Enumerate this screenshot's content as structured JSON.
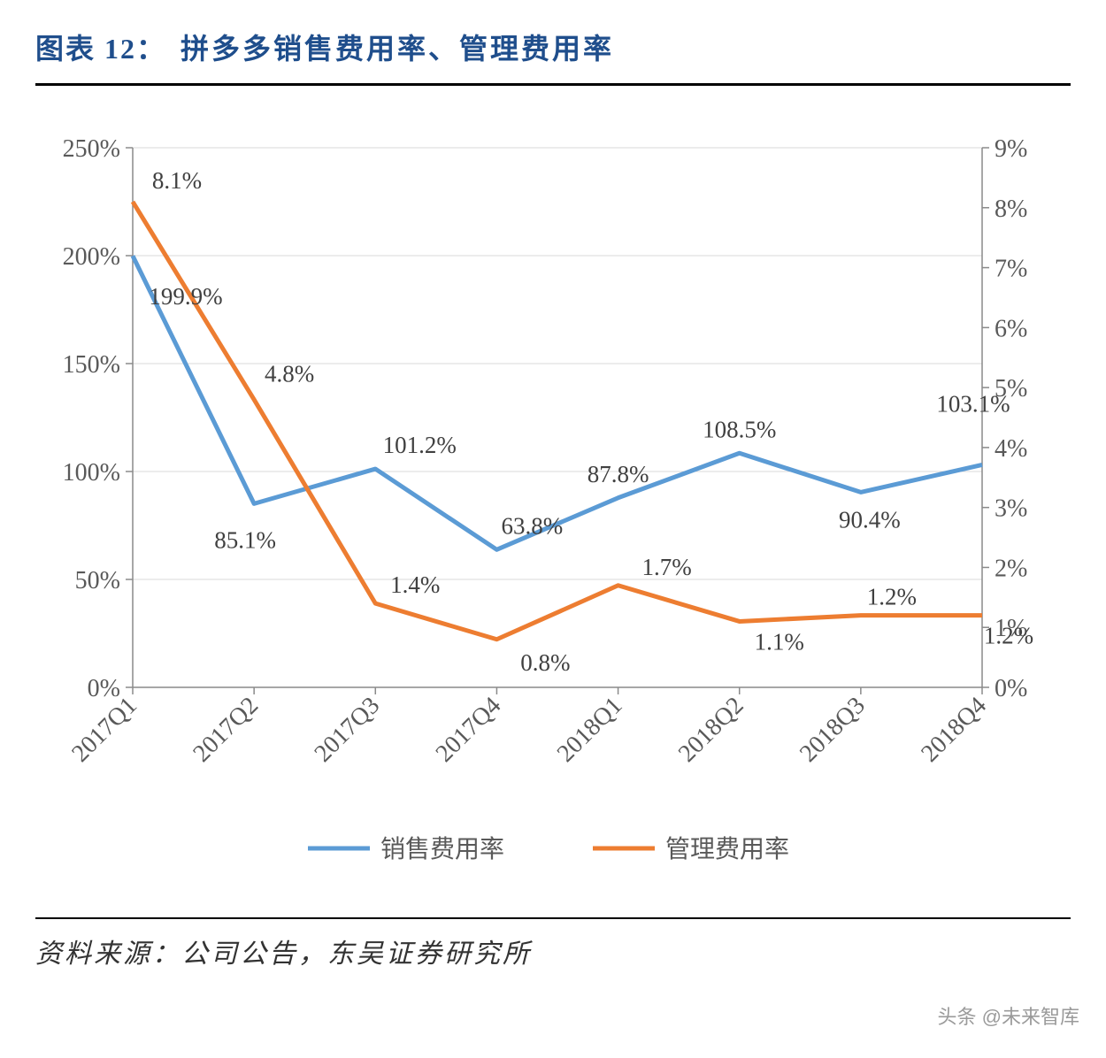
{
  "header": {
    "label": "图表 12：",
    "title": "拼多多销售费用率、管理费用率"
  },
  "chart": {
    "type": "line-dual-axis",
    "background_color": "#ffffff",
    "grid_color": "#d9d9d9",
    "axis_color": "#8a8a8a",
    "categories": [
      "2017Q1",
      "2017Q2",
      "2017Q3",
      "2017Q4",
      "2018Q1",
      "2018Q2",
      "2018Q3",
      "2018Q4"
    ],
    "left_axis": {
      "min": 0,
      "max": 250,
      "step": 50,
      "suffix": "%",
      "ticks": [
        "0%",
        "50%",
        "100%",
        "150%",
        "200%",
        "250%"
      ]
    },
    "right_axis": {
      "min": 0,
      "max": 9,
      "step": 1,
      "suffix": "%",
      "ticks": [
        "0%",
        "1%",
        "2%",
        "3%",
        "4%",
        "5%",
        "6%",
        "7%",
        "8%",
        "9%"
      ]
    },
    "series": [
      {
        "name": "销售费用率",
        "axis": "left",
        "color": "#5b9bd5",
        "line_width": 5,
        "values": [
          199.9,
          85.1,
          101.2,
          63.8,
          87.8,
          108.5,
          90.4,
          103.1
        ],
        "labels": [
          "199.9%",
          "85.1%",
          "101.2%",
          "63.8%",
          "87.8%",
          "108.5%",
          "90.4%",
          "103.1%"
        ]
      },
      {
        "name": "管理费用率",
        "axis": "right",
        "color": "#ed7d31",
        "line_width": 5,
        "values": [
          8.1,
          4.8,
          1.4,
          0.8,
          1.7,
          1.1,
          1.2,
          1.2
        ],
        "labels": [
          "8.1%",
          "4.8%",
          "1.4%",
          "0.8%",
          "1.7%",
          "1.1%",
          "1.2%",
          "1.2%"
        ]
      }
    ],
    "legend": {
      "items": [
        "销售费用率",
        "管理费用率"
      ]
    },
    "label_fontsize": 27,
    "axis_fontsize": 28
  },
  "source": "资料来源：公司公告，东吴证券研究所",
  "watermark": "头条 @未来智库"
}
